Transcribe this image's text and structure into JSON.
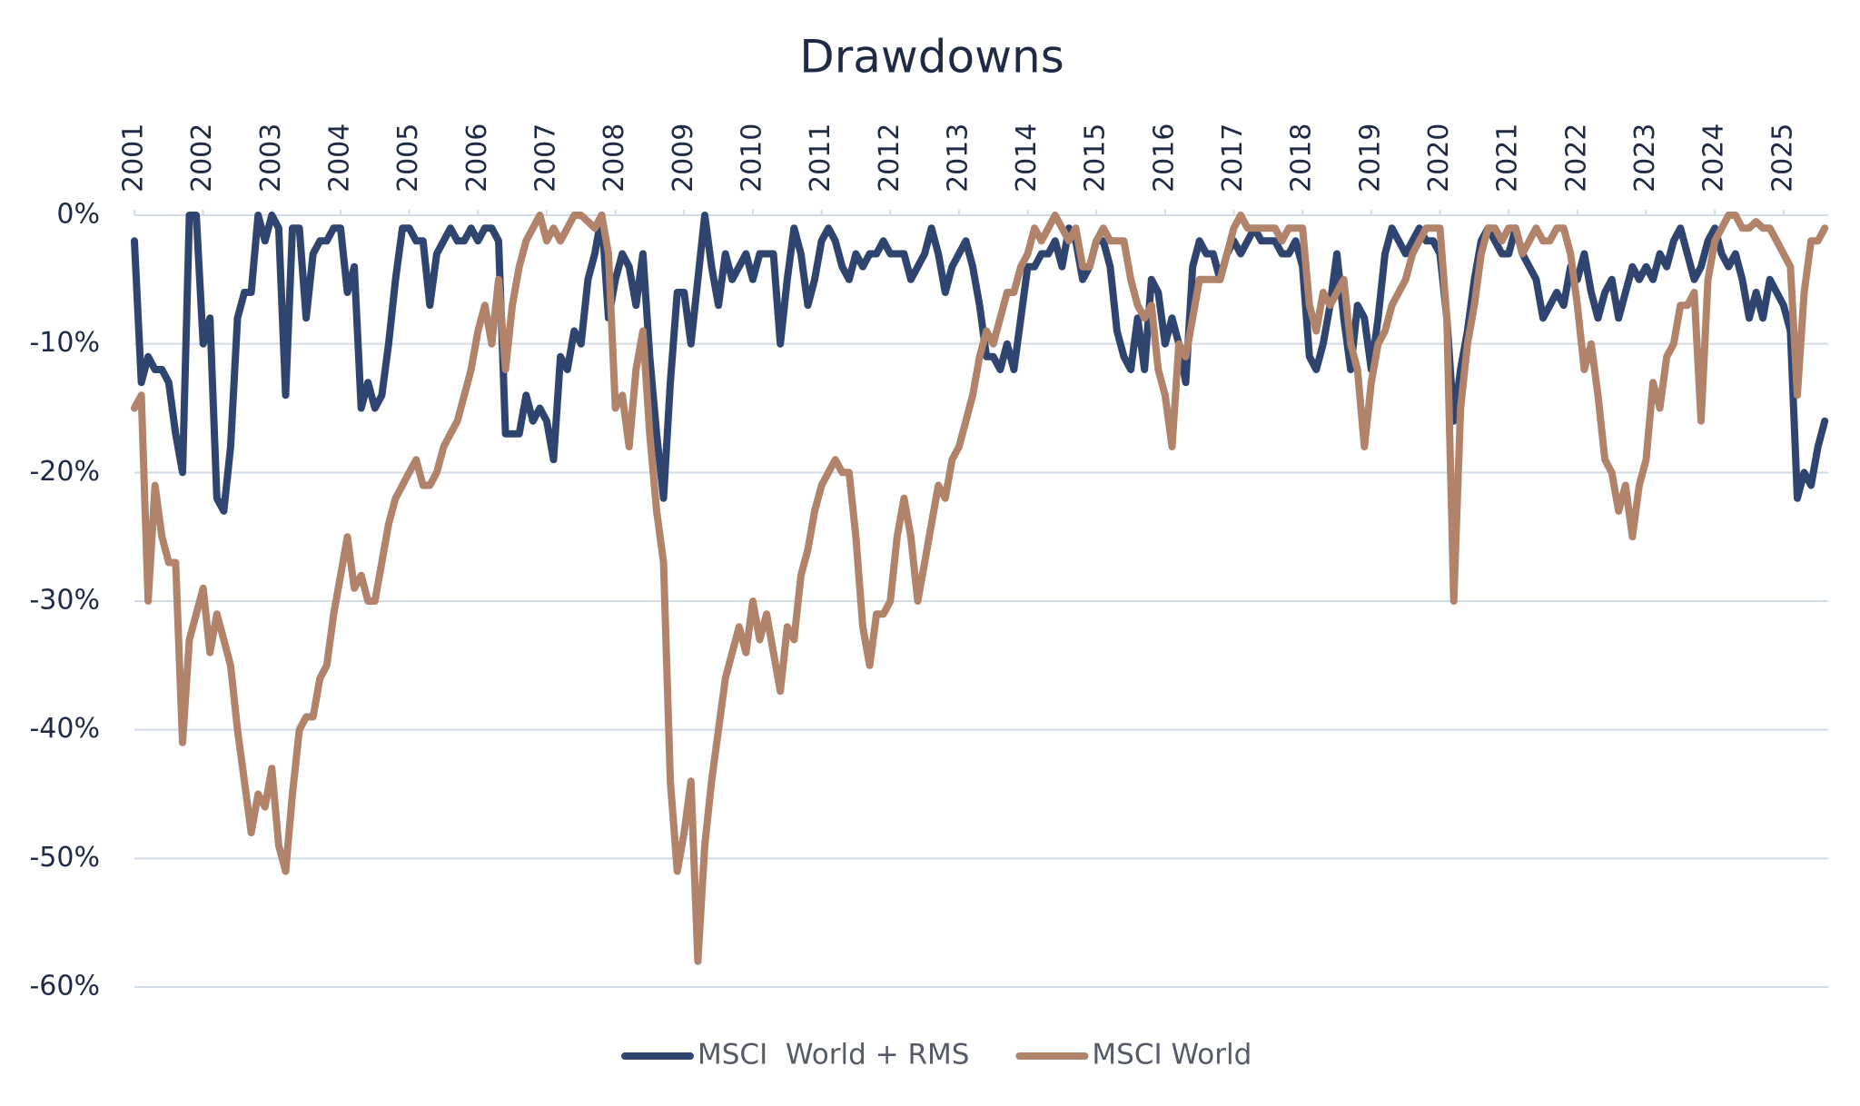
{
  "chart_data": {
    "type": "line",
    "title": "Drawdowns",
    "x": [
      2001,
      2001.1,
      2001.2,
      2001.3,
      2001.4,
      2001.5,
      2001.6,
      2001.7,
      2001.8,
      2001.9,
      2002,
      2002.1,
      2002.2,
      2002.3,
      2002.4,
      2002.5,
      2002.6,
      2002.7,
      2002.8,
      2002.9,
      2003,
      2003.1,
      2003.2,
      2003.3,
      2003.4,
      2003.5,
      2003.6,
      2003.7,
      2003.8,
      2003.9,
      2004,
      2004.1,
      2004.2,
      2004.3,
      2004.4,
      2004.5,
      2004.6,
      2004.7,
      2004.8,
      2004.9,
      2005,
      2005.1,
      2005.2,
      2005.3,
      2005.4,
      2005.5,
      2005.6,
      2005.7,
      2005.8,
      2005.9,
      2006,
      2006.1,
      2006.2,
      2006.3,
      2006.4,
      2006.5,
      2006.6,
      2006.7,
      2006.8,
      2006.9,
      2007,
      2007.1,
      2007.2,
      2007.3,
      2007.4,
      2007.5,
      2007.6,
      2007.7,
      2007.8,
      2007.9,
      2008,
      2008.1,
      2008.2,
      2008.3,
      2008.4,
      2008.5,
      2008.6,
      2008.7,
      2008.8,
      2008.9,
      2009,
      2009.1,
      2009.2,
      2009.3,
      2009.4,
      2009.5,
      2009.6,
      2009.7,
      2009.8,
      2009.9,
      2010,
      2010.1,
      2010.2,
      2010.3,
      2010.4,
      2010.5,
      2010.6,
      2010.7,
      2010.8,
      2010.9,
      2011,
      2011.1,
      2011.2,
      2011.3,
      2011.4,
      2011.5,
      2011.6,
      2011.7,
      2011.8,
      2011.9,
      2012,
      2012.1,
      2012.2,
      2012.3,
      2012.4,
      2012.5,
      2012.6,
      2012.7,
      2012.8,
      2012.9,
      2013,
      2013.1,
      2013.2,
      2013.3,
      2013.4,
      2013.5,
      2013.6,
      2013.7,
      2013.8,
      2013.9,
      2014,
      2014.1,
      2014.2,
      2014.3,
      2014.4,
      2014.5,
      2014.6,
      2014.7,
      2014.8,
      2014.9,
      2015,
      2015.1,
      2015.2,
      2015.3,
      2015.4,
      2015.5,
      2015.6,
      2015.7,
      2015.8,
      2015.9,
      2016,
      2016.1,
      2016.2,
      2016.3,
      2016.4,
      2016.5,
      2016.6,
      2016.7,
      2016.8,
      2016.9,
      2017,
      2017.1,
      2017.2,
      2017.3,
      2017.4,
      2017.5,
      2017.6,
      2017.7,
      2017.8,
      2017.9,
      2018,
      2018.1,
      2018.2,
      2018.3,
      2018.4,
      2018.5,
      2018.6,
      2018.7,
      2018.8,
      2018.9,
      2019,
      2019.1,
      2019.2,
      2019.3,
      2019.4,
      2019.5,
      2019.6,
      2019.7,
      2019.8,
      2019.9,
      2020,
      2020.1,
      2020.2,
      2020.3,
      2020.4,
      2020.5,
      2020.6,
      2020.7,
      2020.8,
      2020.9,
      2021,
      2021.1,
      2021.2,
      2021.3,
      2021.4,
      2021.5,
      2021.6,
      2021.7,
      2021.8,
      2021.9,
      2022,
      2022.1,
      2022.2,
      2022.3,
      2022.4,
      2022.5,
      2022.6,
      2022.7,
      2022.8,
      2022.9,
      2023,
      2023.1,
      2023.2,
      2023.3,
      2023.4,
      2023.5,
      2023.6,
      2023.7,
      2023.8,
      2023.9,
      2024,
      2024.1,
      2024.2,
      2024.3,
      2024.4,
      2024.5,
      2024.6,
      2024.7,
      2024.8,
      2024.9,
      2025,
      2025.1,
      2025.2,
      2025.3,
      2025.4,
      2025.5,
      2025.6
    ],
    "series": [
      {
        "name": "MSCI  World + RMS",
        "color": "#2f4570",
        "values": [
          -2,
          -13,
          -11,
          -12,
          -12,
          -13,
          -17,
          -20,
          0,
          0,
          -10,
          -8,
          -22,
          -23,
          -18,
          -8,
          -6,
          -6,
          0,
          -2,
          0,
          -1,
          -14,
          -1,
          -1,
          -8,
          -3,
          -2,
          -2,
          -1,
          -1,
          -6,
          -4,
          -15,
          -13,
          -15,
          -14,
          -10,
          -5,
          -1,
          -1,
          -2,
          -2,
          -7,
          -3,
          -2,
          -1,
          -2,
          -2,
          -1,
          -2,
          -1,
          -1,
          -2,
          -17,
          -17,
          -17,
          -14,
          -16,
          -15,
          -16,
          -19,
          -11,
          -12,
          -9,
          -10,
          -5,
          -3,
          0,
          -8,
          -5,
          -3,
          -4,
          -7,
          -3,
          -11,
          -17,
          -22,
          -13,
          -6,
          -6,
          -10,
          -5,
          0,
          -4,
          -7,
          -3,
          -5,
          -4,
          -3,
          -5,
          -3,
          -3,
          -3,
          -10,
          -5,
          -1,
          -3,
          -7,
          -5,
          -2,
          -1,
          -2,
          -4,
          -5,
          -3,
          -4,
          -3,
          -3,
          -2,
          -3,
          -3,
          -3,
          -5,
          -4,
          -3,
          -1,
          -3,
          -6,
          -4,
          -3,
          -2,
          -4,
          -7,
          -11,
          -11,
          -12,
          -10,
          -12,
          -8,
          -4,
          -4,
          -3,
          -3,
          -2,
          -4,
          -1,
          -2,
          -5,
          -4,
          -2,
          -2,
          -4,
          -9,
          -11,
          -12,
          -8,
          -12,
          -5,
          -6,
          -10,
          -8,
          -10,
          -13,
          -4,
          -2,
          -3,
          -3,
          -5,
          -3,
          -2,
          -3,
          -2,
          -1,
          -2,
          -2,
          -2,
          -3,
          -3,
          -2,
          -4,
          -11,
          -12,
          -10,
          -7,
          -3,
          -8,
          -12,
          -7,
          -8,
          -12,
          -8,
          -3,
          -1,
          -2,
          -3,
          -2,
          -1,
          -2,
          -2,
          -3,
          -8,
          -16,
          -12,
          -9,
          -5,
          -2,
          -1,
          -2,
          -3,
          -3,
          -1,
          -3,
          -4,
          -5,
          -8,
          -7,
          -6,
          -7,
          -4,
          -5,
          -3,
          -6,
          -8,
          -6,
          -5,
          -8,
          -6,
          -4,
          -5,
          -4,
          -5,
          -3,
          -4,
          -2,
          -1,
          -3,
          -5,
          -4,
          -2,
          -1,
          -3,
          -4,
          -3,
          -5,
          -8,
          -6,
          -8,
          -5,
          -6,
          -7,
          -9,
          -22,
          -20,
          -21,
          -18,
          -16
        ]
      },
      {
        "name": "MSCI World",
        "color": "#b0836a",
        "values": [
          -15,
          -14,
          -30,
          -21,
          -25,
          -27,
          -27,
          -41,
          -33,
          -31,
          -29,
          -34,
          -31,
          -33,
          -35,
          -40,
          -44,
          -48,
          -45,
          -46,
          -43,
          -49,
          -51,
          -45,
          -40,
          -39,
          -39,
          -36,
          -35,
          -31,
          -28,
          -25,
          -29,
          -28,
          -30,
          -30,
          -27,
          -24,
          -22,
          -21,
          -20,
          -19,
          -21,
          -21,
          -20,
          -18,
          -17,
          -16,
          -14,
          -12,
          -9,
          -7,
          -10,
          -5,
          -12,
          -7,
          -4,
          -2,
          -1,
          0,
          -2,
          -1,
          -2,
          -1,
          0,
          0,
          -0.5,
          -1,
          0,
          -3,
          -15,
          -14,
          -18,
          -12,
          -9,
          -17,
          -23,
          -27,
          -44,
          -51,
          -48,
          -44,
          -58,
          -49,
          -44,
          -40,
          -36,
          -34,
          -32,
          -34,
          -30,
          -33,
          -31,
          -34,
          -37,
          -32,
          -33,
          -28,
          -26,
          -23,
          -21,
          -20,
          -19,
          -20,
          -20,
          -25,
          -32,
          -35,
          -31,
          -31,
          -30,
          -25,
          -22,
          -25,
          -30,
          -27,
          -24,
          -21,
          -22,
          -19,
          -18,
          -16,
          -14,
          -11,
          -9,
          -10,
          -8,
          -6,
          -6,
          -4,
          -3,
          -1,
          -2,
          -1,
          0,
          -1,
          -2,
          -1,
          -4,
          -4,
          -2,
          -1,
          -2,
          -2,
          -2,
          -5,
          -7,
          -8,
          -7,
          -12,
          -14,
          -18,
          -10,
          -11,
          -8,
          -5,
          -5,
          -5,
          -5,
          -3,
          -1,
          0,
          -1,
          -1,
          -1,
          -1,
          -1,
          -2,
          -1,
          -1,
          -1,
          -7,
          -9,
          -6,
          -7,
          -6,
          -5,
          -10,
          -12,
          -18,
          -13,
          -10,
          -9,
          -7,
          -6,
          -5,
          -3,
          -2,
          -1,
          -1,
          -1,
          -8,
          -30,
          -15,
          -10,
          -7,
          -3,
          -1,
          -1,
          -2,
          -1,
          -1,
          -3,
          -2,
          -1,
          -2,
          -2,
          -1,
          -1,
          -3,
          -7,
          -12,
          -10,
          -14,
          -19,
          -20,
          -23,
          -21,
          -25,
          -21,
          -19,
          -13,
          -15,
          -11,
          -10,
          -7,
          -7,
          -6,
          -16,
          -5,
          -2,
          -1,
          0,
          0,
          -1,
          -1,
          -0.5,
          -1,
          -1,
          -2,
          -3,
          -4,
          -14,
          -6,
          -2,
          -2,
          -1
        ]
      }
    ],
    "xlim": [
      2001,
      2025.65
    ],
    "xticks": [
      2001,
      2002,
      2003,
      2004,
      2005,
      2006,
      2007,
      2008,
      2009,
      2010,
      2011,
      2012,
      2013,
      2014,
      2015,
      2016,
      2017,
      2018,
      2019,
      2020,
      2021,
      2022,
      2023,
      2024,
      2025
    ],
    "ylim": [
      -60,
      0
    ],
    "yticks": [
      {
        "value": 0,
        "label": "0%"
      },
      {
        "value": -10,
        "label": "-10%"
      },
      {
        "value": -20,
        "label": "-20%"
      },
      {
        "value": -30,
        "label": "-30%"
      },
      {
        "value": -40,
        "label": "-40%"
      },
      {
        "value": -50,
        "label": "-50%"
      },
      {
        "value": -60,
        "label": "-60%"
      }
    ],
    "grid": true,
    "legend": "bottom"
  }
}
